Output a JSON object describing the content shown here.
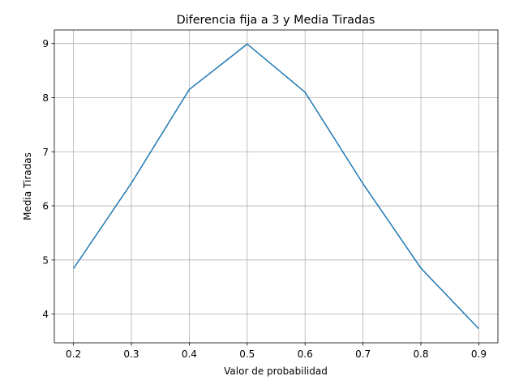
{
  "chart_data": {
    "type": "line",
    "title": "Diferencia fija a 3 y Media Tiradas",
    "xlabel": "Valor de probabilidad",
    "ylabel": "Media Tiradas",
    "x": [
      0.2,
      0.3,
      0.4,
      0.5,
      0.6,
      0.7,
      0.8,
      0.9
    ],
    "series": [
      {
        "values": [
          4.84,
          6.42,
          8.15,
          8.99,
          8.1,
          6.41,
          4.85,
          3.73
        ]
      }
    ],
    "xlim": [
      0.167,
      0.933
    ],
    "ylim": [
      3.47,
      9.25
    ],
    "xticks": [
      "0.2",
      "0.3",
      "0.4",
      "0.5",
      "0.6",
      "0.7",
      "0.8",
      "0.9"
    ],
    "yticks": [
      "4",
      "5",
      "6",
      "7",
      "8",
      "9"
    ],
    "grid": true,
    "legend": "none",
    "line_color": "#1f77b4",
    "grid_color": "#b0b0b0"
  }
}
